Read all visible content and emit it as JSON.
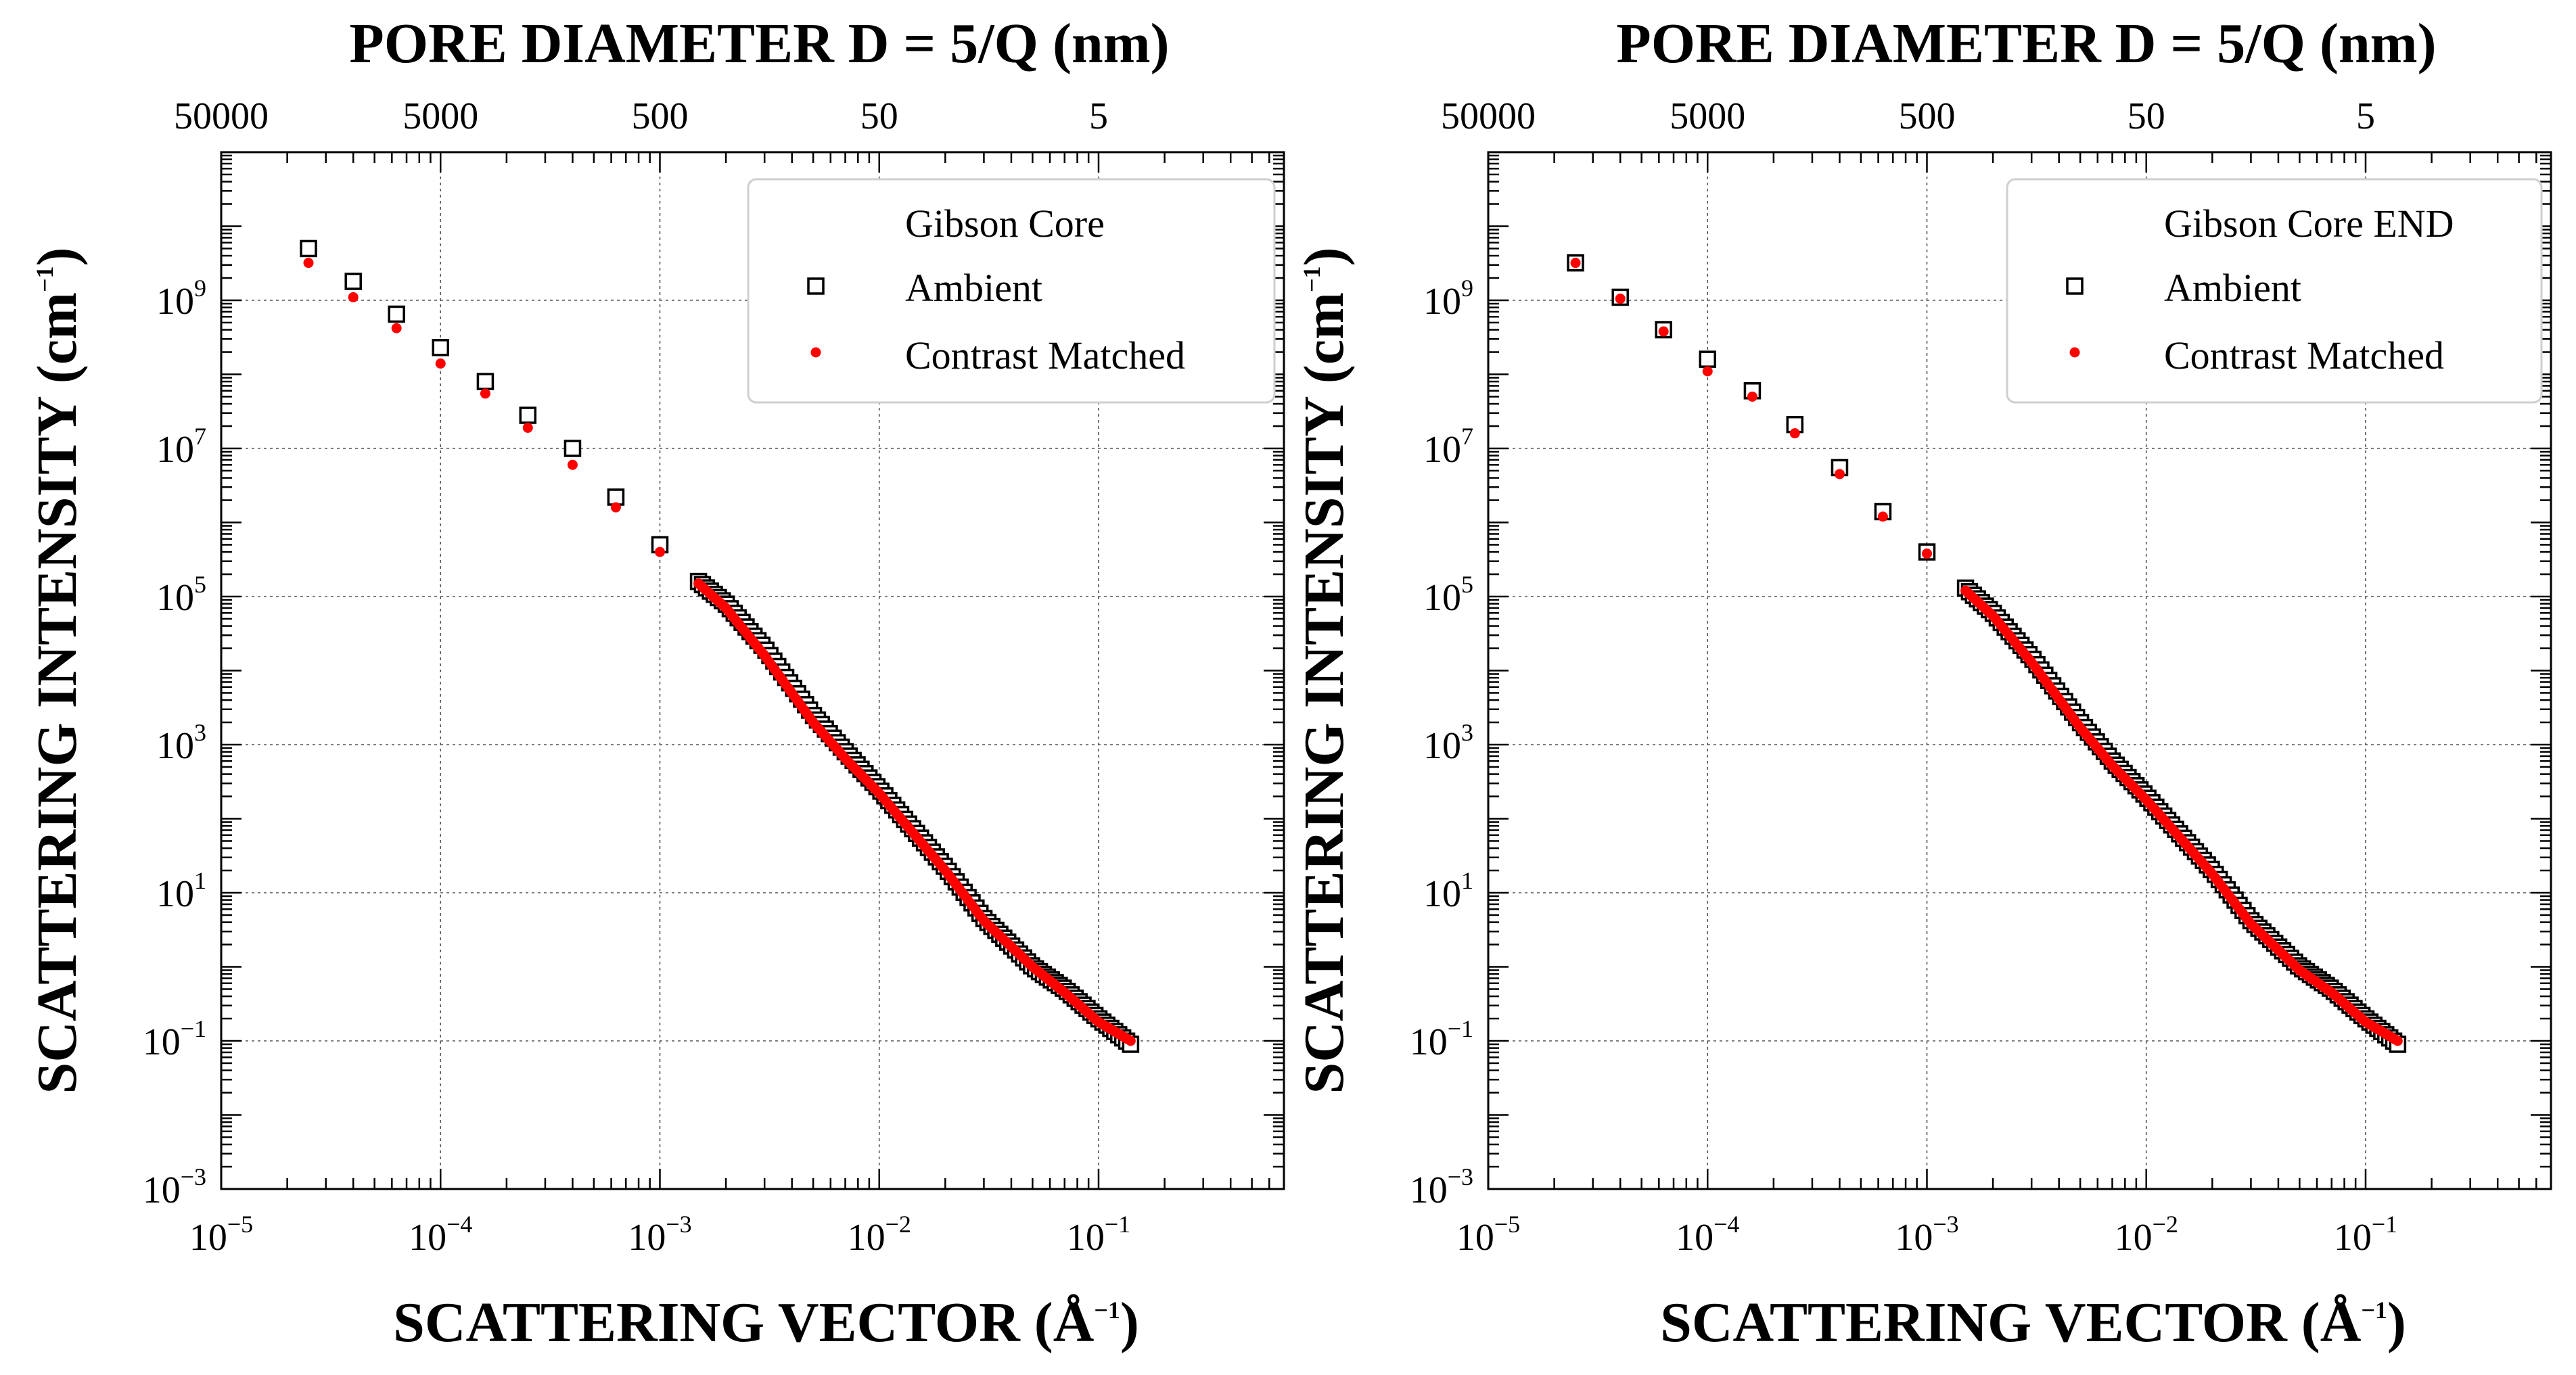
{
  "chart_data": [
    {
      "type": "scatter",
      "scale": {
        "x": "log",
        "y": "log"
      },
      "xlim": [
        1e-05,
        0.7
      ],
      "ylim": [
        0.001,
        100000000000.0
      ],
      "x_ticks": [
        1e-05,
        0.0001,
        0.001,
        0.01,
        0.1
      ],
      "x_tick_labels": [
        {
          "base": "10",
          "exp": "−5"
        },
        {
          "base": "10",
          "exp": "−4"
        },
        {
          "base": "10",
          "exp": "−3"
        },
        {
          "base": "10",
          "exp": "−2"
        },
        {
          "base": "10",
          "exp": "−1"
        }
      ],
      "y_ticks": [
        0.001,
        0.1,
        10,
        1000,
        100000,
        10000000,
        1000000000
      ],
      "y_tick_labels": [
        {
          "base": "10",
          "exp": "−3"
        },
        {
          "base": "10",
          "exp": "−1"
        },
        {
          "base": "10",
          "exp": "1"
        },
        {
          "base": "10",
          "exp": "3"
        },
        {
          "base": "10",
          "exp": "5"
        },
        {
          "base": "10",
          "exp": "7"
        },
        {
          "base": "10",
          "exp": "9"
        }
      ],
      "top_axis_title": "PORE DIAMETER D = 5/Q (nm)",
      "top_tick_labels": [
        "50000",
        "5000",
        "500",
        "50",
        "5"
      ],
      "top_tick_positions_q": [
        1e-05,
        0.0001,
        0.001,
        0.01,
        0.1
      ],
      "xlabel_main": "SCATTERING VECTOR (Å",
      "xlabel_sup": "−1",
      "xlabel_end": ")",
      "ylabel_main": "SCATTERING INTENSITY (cm",
      "ylabel_sup": "−1",
      "ylabel_end": ")",
      "legend": {
        "title": "Gibson Core",
        "position": "top-right",
        "entries": [
          "Ambient",
          "Contrast Matched"
        ]
      },
      "series": [
        {
          "name": "Ambient",
          "marker": "open-square",
          "color": "#000000",
          "x": [
            2.5e-05,
            4e-05,
            6.3e-05,
            0.0001,
            0.00016,
            0.00025,
            0.0004,
            0.00063,
            0.001
          ],
          "y": [
            5000000000.0,
            1800000000.0,
            650000000.0,
            230000000.0,
            80000000.0,
            28000000.0,
            10000000.0,
            2200000.0,
            500000
          ],
          "curve": {
            "x": [
              0.0015,
              0.002,
              0.003,
              0.005,
              0.007,
              0.01,
              0.02,
              0.03,
              0.05,
              0.07,
              0.1,
              0.14
            ],
            "y": [
              160000,
              80000,
              20000,
              2500,
              800,
              250,
              22,
              4.5,
              1,
              0.5,
              0.2,
              0.09
            ]
          }
        },
        {
          "name": "Contrast Matched",
          "marker": "filled-dot",
          "color": "#ff0000",
          "x": [
            2.5e-05,
            4e-05,
            6.3e-05,
            0.0001,
            0.00016,
            0.00025,
            0.0004,
            0.00063,
            0.001
          ],
          "y": [
            3200000000.0,
            1100000000.0,
            420000000.0,
            140000000.0,
            55000000.0,
            19000000.0,
            6000000.0,
            1600000.0,
            400000
          ],
          "curve": {
            "x": [
              0.0015,
              0.002,
              0.003,
              0.005,
              0.007,
              0.01,
              0.02,
              0.03,
              0.05,
              0.07,
              0.1,
              0.14
            ],
            "y": [
              150000,
              70000,
              16000,
              2000,
              650,
              220,
              20,
              4.2,
              1,
              0.45,
              0.18,
              0.1
            ]
          }
        }
      ]
    },
    {
      "type": "scatter",
      "scale": {
        "x": "log",
        "y": "log"
      },
      "xlim": [
        1e-05,
        0.7
      ],
      "ylim": [
        0.001,
        100000000000.0
      ],
      "x_ticks": [
        1e-05,
        0.0001,
        0.001,
        0.01,
        0.1
      ],
      "x_tick_labels": [
        {
          "base": "10",
          "exp": "−5"
        },
        {
          "base": "10",
          "exp": "−4"
        },
        {
          "base": "10",
          "exp": "−3"
        },
        {
          "base": "10",
          "exp": "−2"
        },
        {
          "base": "10",
          "exp": "−1"
        }
      ],
      "y_ticks": [
        0.001,
        0.1,
        10,
        1000,
        100000,
        10000000,
        1000000000
      ],
      "y_tick_labels": [
        {
          "base": "10",
          "exp": "−3"
        },
        {
          "base": "10",
          "exp": "−1"
        },
        {
          "base": "10",
          "exp": "1"
        },
        {
          "base": "10",
          "exp": "3"
        },
        {
          "base": "10",
          "exp": "5"
        },
        {
          "base": "10",
          "exp": "7"
        },
        {
          "base": "10",
          "exp": "9"
        }
      ],
      "top_axis_title": "PORE DIAMETER D = 5/Q (nm)",
      "top_tick_labels": [
        "50000",
        "5000",
        "500",
        "50",
        "5"
      ],
      "top_tick_positions_q": [
        1e-05,
        0.0001,
        0.001,
        0.01,
        0.1
      ],
      "xlabel_main": "SCATTERING VECTOR (Å",
      "xlabel_sup": "−1",
      "xlabel_end": ")",
      "ylabel_main": "SCATTERING INTENSITY (cm",
      "ylabel_sup": "−1",
      "ylabel_end": ")",
      "legend": {
        "title": "Gibson Core END",
        "position": "top-right",
        "entries": [
          "Ambient",
          "Contrast Matched"
        ]
      },
      "series": [
        {
          "name": "Ambient",
          "marker": "open-square",
          "color": "#000000",
          "x": [
            2.5e-05,
            4e-05,
            6.3e-05,
            0.0001,
            0.00016,
            0.00025,
            0.0004,
            0.00063,
            0.001
          ],
          "y": [
            3200000000.0,
            1100000000.0,
            400000000.0,
            160000000.0,
            60000000.0,
            21000000.0,
            5500000.0,
            1400000.0,
            400000
          ],
          "curve": {
            "x": [
              0.0015,
              0.002,
              0.003,
              0.005,
              0.007,
              0.01,
              0.02,
              0.03,
              0.05,
              0.07,
              0.1,
              0.14
            ],
            "y": [
              130000,
              60000,
              15000,
              2000,
              600,
              200,
              20,
              4.2,
              1,
              0.5,
              0.2,
              0.09
            ]
          }
        },
        {
          "name": "Contrast Matched",
          "marker": "filled-dot",
          "color": "#ff0000",
          "x": [
            2.5e-05,
            4e-05,
            6.3e-05,
            0.0001,
            0.00016,
            0.00025,
            0.0004,
            0.00063,
            0.001
          ],
          "y": [
            3200000000.0,
            1050000000.0,
            380000000.0,
            110000000.0,
            50000000.0,
            16000000.0,
            4500000.0,
            1200000.0,
            380000
          ],
          "curve": {
            "x": [
              0.0015,
              0.002,
              0.003,
              0.005,
              0.007,
              0.01,
              0.02,
              0.03,
              0.05,
              0.07,
              0.1,
              0.14
            ],
            "y": [
              120000,
              55000,
              13000,
              1700,
              520,
              180,
              18,
              3.8,
              0.9,
              0.45,
              0.18,
              0.1
            ]
          }
        }
      ]
    }
  ]
}
